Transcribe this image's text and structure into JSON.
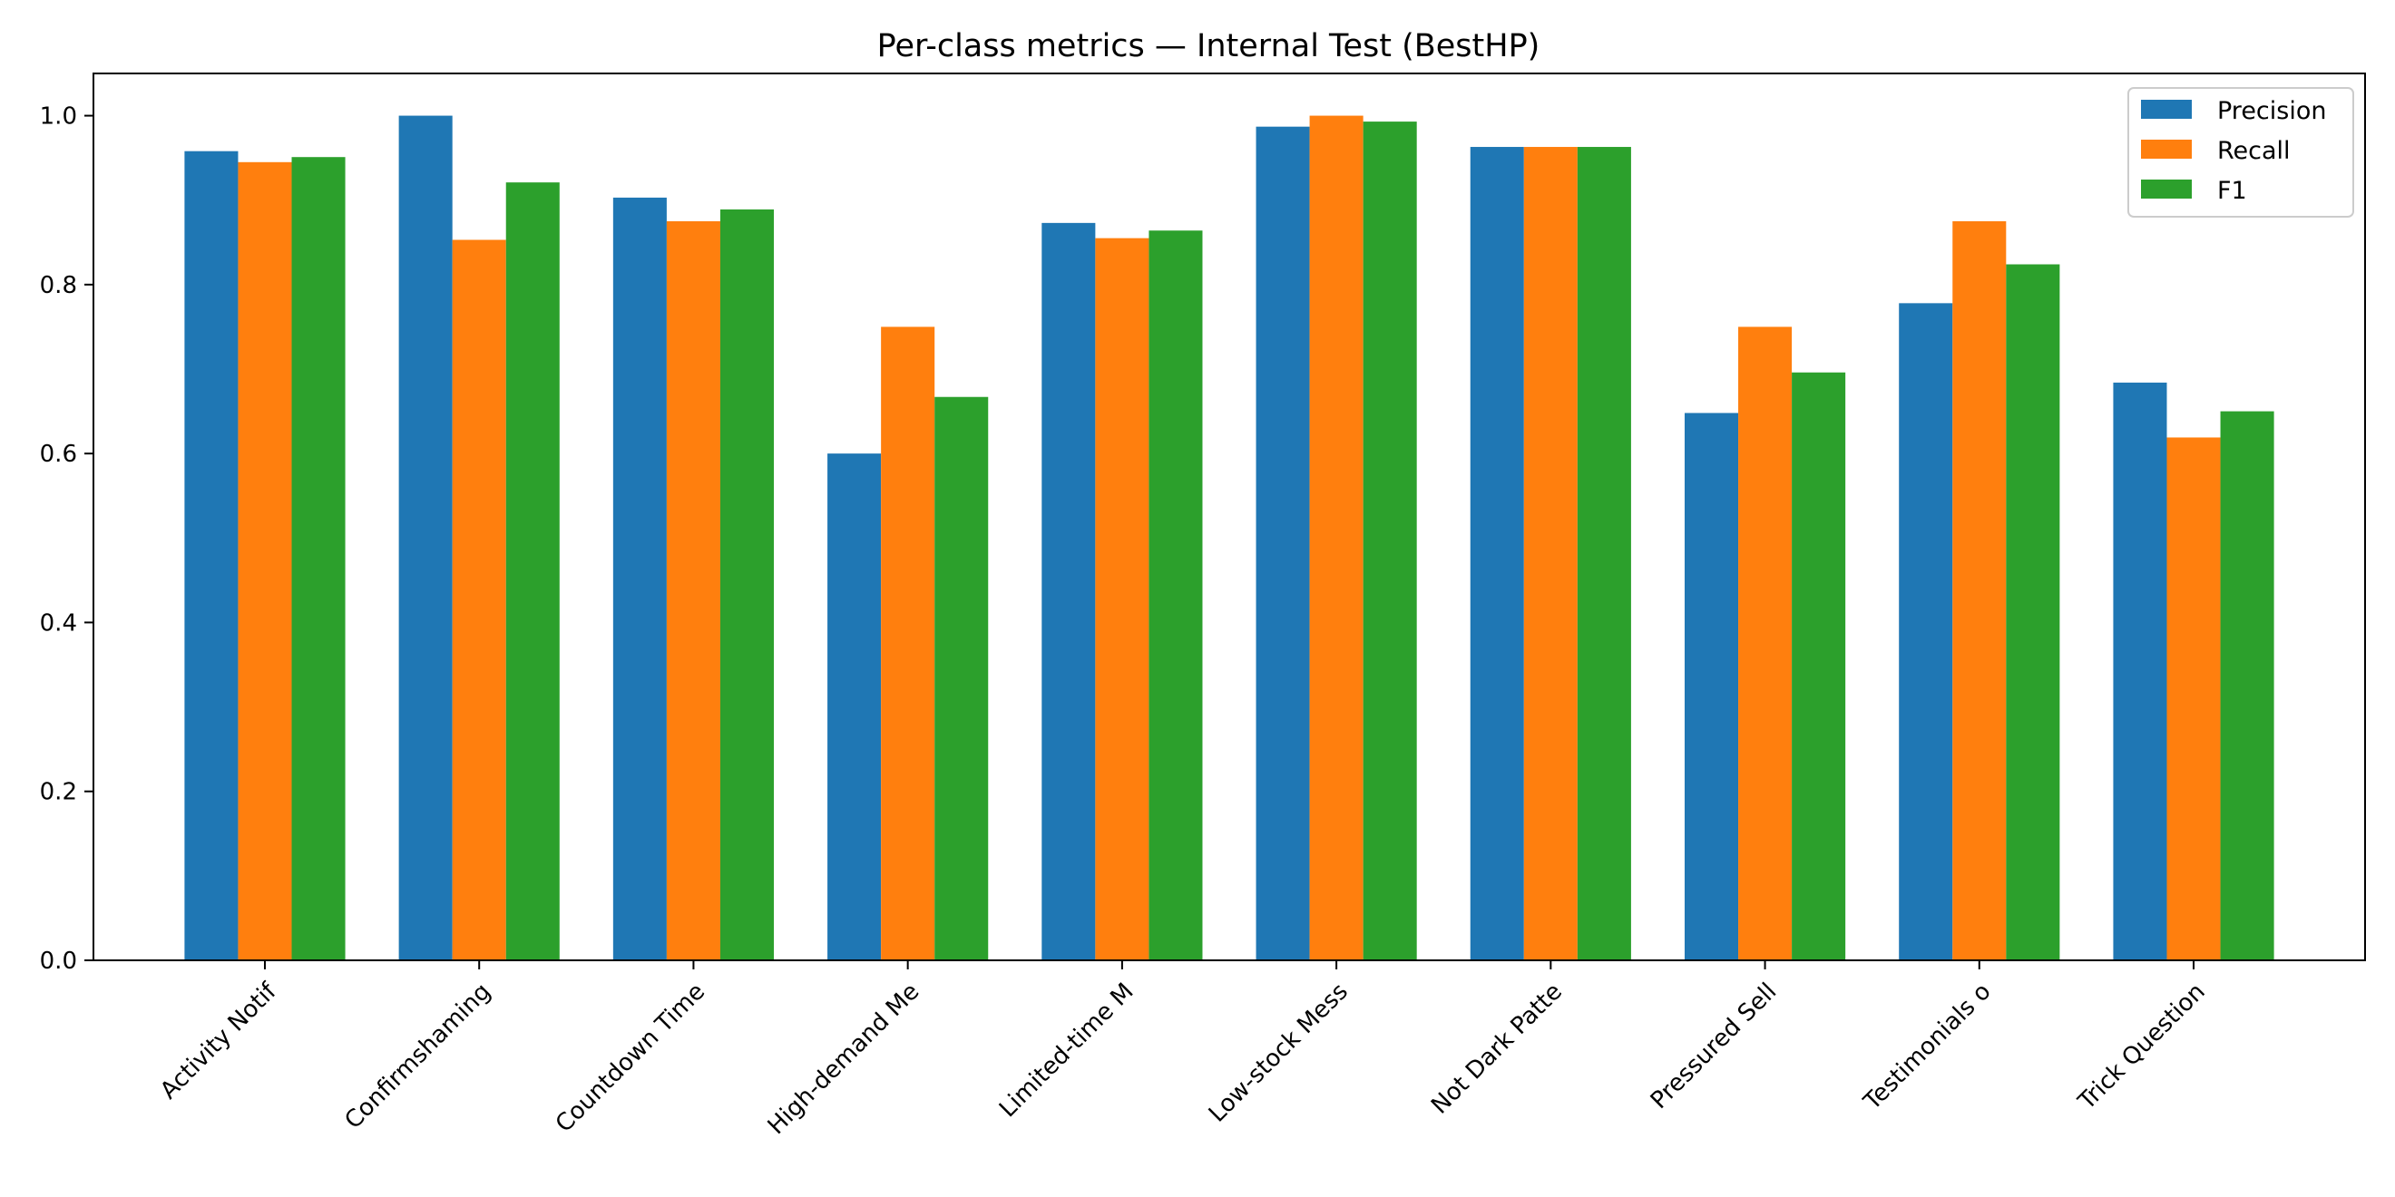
{
  "chart_data": {
    "type": "bar",
    "title": "Per-class metrics — Internal Test (BestHP)",
    "xlabel": "",
    "ylabel": "",
    "ylim": [
      0,
      1.05
    ],
    "yticks": [
      "0.0",
      "0.2",
      "0.4",
      "0.6",
      "0.8",
      "1.0"
    ],
    "legend_position": "top-right",
    "grid": false,
    "categories": [
      "Activity Notif",
      "Confirmshaming",
      "Countdown Time",
      "High-demand Me",
      "Limited-time M",
      "Low-stock Mess",
      "Not Dark Patte",
      "Pressured Sell",
      "Testimonials o",
      "Trick Question"
    ],
    "series": [
      {
        "name": "Precision",
        "color": "#1f77b4",
        "values": [
          0.958,
          1.0,
          0.903,
          0.6,
          0.873,
          0.987,
          0.963,
          0.648,
          0.778,
          0.684
        ]
      },
      {
        "name": "Recall",
        "color": "#ff7f0e",
        "values": [
          0.945,
          0.853,
          0.875,
          0.75,
          0.855,
          1.0,
          0.963,
          0.75,
          0.875,
          0.619
        ]
      },
      {
        "name": "F1",
        "color": "#2ca02c",
        "values": [
          0.951,
          0.921,
          0.889,
          0.667,
          0.864,
          0.993,
          0.963,
          0.696,
          0.824,
          0.65
        ]
      }
    ]
  }
}
